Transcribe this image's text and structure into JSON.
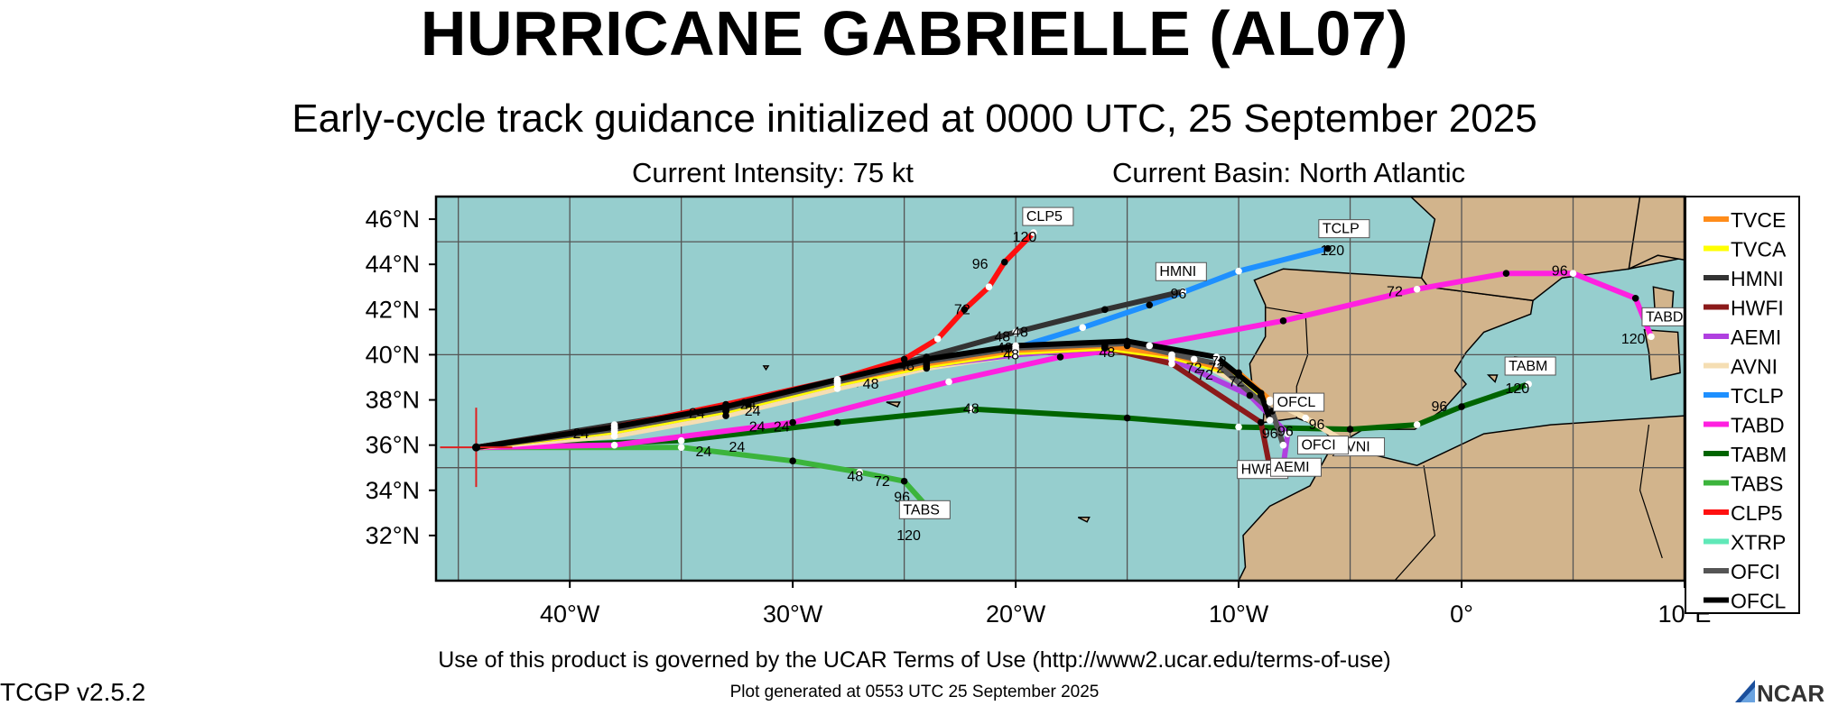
{
  "title": "HURRICANE GABRIELLE (AL07)",
  "subtitle": "Early-cycle track guidance initialized at 0000 UTC, 25 September 2025",
  "intensity": "Current Intensity: 75 kt",
  "basin": "Current Basin: North Atlantic",
  "footer": {
    "terms": "Use of this product is governed by the UCAR Terms of Use (http://www2.ucar.edu/terms-of-use)",
    "generated": "Plot generated at 0553 UTC   25 September 2025",
    "version": "TCGP v2.5.2",
    "logo": "NCAR"
  },
  "colors": {
    "ocean": "#96cece",
    "land": "#d2b48c",
    "grid": "#555555"
  },
  "axes": {
    "lon_ticks": [
      "40°W",
      "30°W",
      "20°W",
      "10°W",
      "0°",
      "10°E"
    ],
    "lat_ticks": [
      "46°N",
      "44°N",
      "42°N",
      "40°N",
      "38°N",
      "36°N",
      "34°N",
      "32°N"
    ]
  },
  "chart_data": {
    "type": "map-tracks",
    "lon_range": [
      -46,
      10
    ],
    "lat_range": [
      30,
      47
    ],
    "current_position": {
      "lon": -44.2,
      "lat": 35.9
    },
    "legend_position": "right",
    "series": [
      {
        "name": "TVCE",
        "color": "#ff8c1a",
        "points": [
          [
            -44.2,
            35.9
          ],
          [
            -38,
            36.7
          ],
          [
            -33,
            37.6
          ],
          [
            -28,
            38.8
          ],
          [
            -24,
            39.6
          ],
          [
            -20,
            40.2
          ],
          [
            -16,
            40.4
          ],
          [
            -13,
            40.0
          ],
          [
            -10,
            39.2
          ],
          [
            -8.6,
            38.0
          ]
        ],
        "labels": []
      },
      {
        "name": "TVCA",
        "color": "#ffff00",
        "points": [
          [
            -44.2,
            35.9
          ],
          [
            -38,
            36.6
          ],
          [
            -33,
            37.5
          ],
          [
            -28,
            38.7
          ],
          [
            -24,
            39.5
          ],
          [
            -20,
            40.1
          ],
          [
            -16,
            40.3
          ],
          [
            -13,
            39.9
          ],
          [
            -10,
            39.1
          ],
          [
            -8.6,
            37.9
          ]
        ],
        "labels": []
      },
      {
        "name": "HMNI",
        "color": "#333333",
        "points": [
          [
            -44.2,
            35.9
          ],
          [
            -38,
            36.9
          ],
          [
            -32,
            37.8
          ],
          [
            -28,
            38.9
          ],
          [
            -24,
            39.9
          ],
          [
            -20,
            41.0
          ],
          [
            -16,
            42.0
          ],
          [
            -12.5,
            42.8
          ]
        ],
        "labels": [
          {
            "lon": -12.7,
            "lat": 42.5,
            "t": "96"
          }
        ],
        "end_label": "HMNI"
      },
      {
        "name": "HWFI",
        "color": "#8b1a1a",
        "points": [
          [
            -44.2,
            35.9
          ],
          [
            -38,
            36.8
          ],
          [
            -32,
            37.9
          ],
          [
            -28,
            38.8
          ],
          [
            -24,
            39.6
          ],
          [
            -20,
            40.1
          ],
          [
            -16,
            40.3
          ],
          [
            -13,
            39.6
          ],
          [
            -9,
            37.0
          ],
          [
            -8.6,
            35.0
          ]
        ],
        "labels": [],
        "end_label": "HWFI"
      },
      {
        "name": "AEMI",
        "color": "#b040e0",
        "points": [
          [
            -44.2,
            35.9
          ],
          [
            -38,
            36.6
          ],
          [
            -33,
            37.5
          ],
          [
            -28,
            38.7
          ],
          [
            -24,
            39.5
          ],
          [
            -20,
            40.0
          ],
          [
            -16,
            40.3
          ],
          [
            -13,
            39.8
          ],
          [
            -9.5,
            38.2
          ],
          [
            -7.8,
            36.5
          ],
          [
            -8.0,
            35.1
          ]
        ],
        "labels": [],
        "end_label": "AEMI"
      },
      {
        "name": "AVNI",
        "color": "#f5deb3",
        "points": [
          [
            -44.2,
            35.9
          ],
          [
            -38,
            36.4
          ],
          [
            -33,
            37.3
          ],
          [
            -28,
            38.5
          ],
          [
            -24,
            39.4
          ],
          [
            -20,
            40.0
          ],
          [
            -15,
            40.4
          ],
          [
            -12,
            39.8
          ],
          [
            -9,
            38.2
          ],
          [
            -7,
            37.2
          ],
          [
            -5,
            36.0
          ]
        ],
        "labels": [],
        "end_label": "AVNI"
      },
      {
        "name": "TCLP",
        "color": "#1e90ff",
        "points": [
          [
            -20,
            40.3
          ],
          [
            -17,
            41.2
          ],
          [
            -14,
            42.2
          ],
          [
            -10,
            43.7
          ],
          [
            -6,
            44.7
          ]
        ],
        "labels": [
          {
            "lon": -5.8,
            "lat": 44.4,
            "t": "120"
          }
        ],
        "end_label": "TCLP"
      },
      {
        "name": "TABD",
        "color": "#ff20e0",
        "points": [
          [
            -44.2,
            35.9
          ],
          [
            -38,
            36.0
          ],
          [
            -30,
            37.0
          ],
          [
            -23,
            38.8
          ],
          [
            -18,
            39.9
          ],
          [
            -14,
            40.4
          ],
          [
            -8,
            41.5
          ],
          [
            -2,
            42.9
          ],
          [
            2,
            43.6
          ],
          [
            5,
            43.6
          ],
          [
            7.8,
            42.5
          ],
          [
            8.5,
            40.8
          ]
        ],
        "labels": [
          {
            "lon": -3,
            "lat": 42.6,
            "t": "72"
          },
          {
            "lon": 4.4,
            "lat": 43.5,
            "t": "96"
          },
          {
            "lon": 7.7,
            "lat": 40.5,
            "t": "120"
          }
        ],
        "end_label": "TABD"
      },
      {
        "name": "TABM",
        "color": "#006400",
        "points": [
          [
            -44.2,
            35.9
          ],
          [
            -35,
            36.2
          ],
          [
            -28,
            37.0
          ],
          [
            -22,
            37.6
          ],
          [
            -15,
            37.2
          ],
          [
            -10,
            36.8
          ],
          [
            -5,
            36.7
          ],
          [
            -2,
            36.9
          ],
          [
            0,
            37.7
          ],
          [
            3,
            38.7
          ]
        ],
        "labels": [
          {
            "lon": -22,
            "lat": 37.4,
            "t": "48"
          },
          {
            "lon": -1,
            "lat": 37.5,
            "t": "96"
          },
          {
            "lon": 2.5,
            "lat": 38.3,
            "t": "120"
          }
        ],
        "end_label": "TABM"
      },
      {
        "name": "TABS",
        "color": "#3cb43c",
        "points": [
          [
            -44.2,
            35.9
          ],
          [
            -35,
            35.9
          ],
          [
            -30,
            35.3
          ],
          [
            -27,
            34.8
          ],
          [
            -25,
            34.4
          ],
          [
            -24,
            33.3
          ]
        ],
        "labels": [
          {
            "lon": -34,
            "lat": 35.5,
            "t": "24"
          },
          {
            "lon": -32.5,
            "lat": 35.7,
            "t": "24"
          },
          {
            "lon": -27.2,
            "lat": 34.4,
            "t": "48"
          },
          {
            "lon": -26,
            "lat": 34.2,
            "t": "72"
          },
          {
            "lon": -25.1,
            "lat": 33.5,
            "t": "96"
          },
          {
            "lon": -24.8,
            "lat": 31.8,
            "t": "120"
          }
        ],
        "end_label": "TABS"
      },
      {
        "name": "CLP5",
        "color": "#ff1010",
        "points": [
          [
            -44.2,
            35.9
          ],
          [
            -38,
            36.8
          ],
          [
            -33,
            37.8
          ],
          [
            -28,
            38.9
          ],
          [
            -25,
            39.8
          ],
          [
            -23.5,
            40.7
          ],
          [
            -22.3,
            42.0
          ],
          [
            -21.2,
            43.0
          ],
          [
            -20.5,
            44.1
          ],
          [
            -19.2,
            45.4
          ]
        ],
        "labels": [
          {
            "lon": -22.4,
            "lat": 41.8,
            "t": "72"
          },
          {
            "lon": -21.6,
            "lat": 43.8,
            "t": "96"
          },
          {
            "lon": -19.6,
            "lat": 45.0,
            "t": "120"
          }
        ],
        "end_label": "CLP5"
      },
      {
        "name": "XTRP",
        "color": "#60e8b8",
        "points": [],
        "labels": []
      },
      {
        "name": "OFCI",
        "color": "#555555",
        "points": [
          [
            -44.2,
            35.9
          ],
          [
            -38,
            36.7
          ],
          [
            -33,
            37.6
          ],
          [
            -28,
            38.8
          ],
          [
            -24,
            39.7
          ],
          [
            -20,
            40.3
          ],
          [
            -15,
            40.5
          ],
          [
            -11,
            39.6
          ],
          [
            -8.5,
            37.5
          ],
          [
            -8,
            36.0
          ]
        ],
        "labels": [],
        "end_label": "OFCI"
      },
      {
        "name": "OFCL",
        "color": "#000000",
        "points": [
          [
            -44.2,
            35.9
          ],
          [
            -38,
            36.8
          ],
          [
            -33,
            37.7
          ],
          [
            -28,
            38.9
          ],
          [
            -24,
            39.8
          ],
          [
            -20,
            40.4
          ],
          [
            -15,
            40.6
          ],
          [
            -11,
            39.9
          ],
          [
            -9,
            38.3
          ],
          [
            -8.6,
            37.1
          ]
        ],
        "labels": [],
        "end_label": "OFCL"
      }
    ],
    "extra_labels": [
      {
        "lon": -39.5,
        "lat": 36.3,
        "t": "24"
      },
      {
        "lon": -34.3,
        "lat": 37.2,
        "t": "24"
      },
      {
        "lon": -31.8,
        "lat": 37.3,
        "t": "24"
      },
      {
        "lon": -30.5,
        "lat": 36.6,
        "t": "24"
      },
      {
        "lon": -31.6,
        "lat": 36.6,
        "t": "24"
      },
      {
        "lon": -32.0,
        "lat": 37.6,
        "t": "24"
      },
      {
        "lon": -26.5,
        "lat": 38.5,
        "t": "48"
      },
      {
        "lon": -24.9,
        "lat": 39.3,
        "t": "48"
      },
      {
        "lon": -15.9,
        "lat": 39.9,
        "t": "48"
      },
      {
        "lon": -20.2,
        "lat": 39.8,
        "t": "48"
      },
      {
        "lon": -20.5,
        "lat": 40.1,
        "t": "48"
      },
      {
        "lon": -19.8,
        "lat": 40.8,
        "t": "48"
      },
      {
        "lon": -20.6,
        "lat": 40.6,
        "t": "48"
      },
      {
        "lon": -12.0,
        "lat": 39.2,
        "t": "72"
      },
      {
        "lon": -11.5,
        "lat": 38.9,
        "t": "72"
      },
      {
        "lon": -10.1,
        "lat": 38.6,
        "t": "72"
      },
      {
        "lon": -11.0,
        "lat": 39.2,
        "t": "72"
      },
      {
        "lon": -10.9,
        "lat": 39.5,
        "t": "72"
      },
      {
        "lon": -8.6,
        "lat": 36.3,
        "t": "96"
      },
      {
        "lon": -7.9,
        "lat": 36.4,
        "t": "96"
      },
      {
        "lon": -6.5,
        "lat": 36.7,
        "t": "96"
      },
      {
        "lon": -9.5,
        "lat": 34.8,
        "t": "120"
      },
      {
        "lon": -8.6,
        "lat": 34.8,
        "t": "120"
      },
      {
        "lon": -7.3,
        "lat": 34.9,
        "t": "120"
      },
      {
        "lon": -5.3,
        "lat": 35.5,
        "t": "120"
      }
    ]
  }
}
